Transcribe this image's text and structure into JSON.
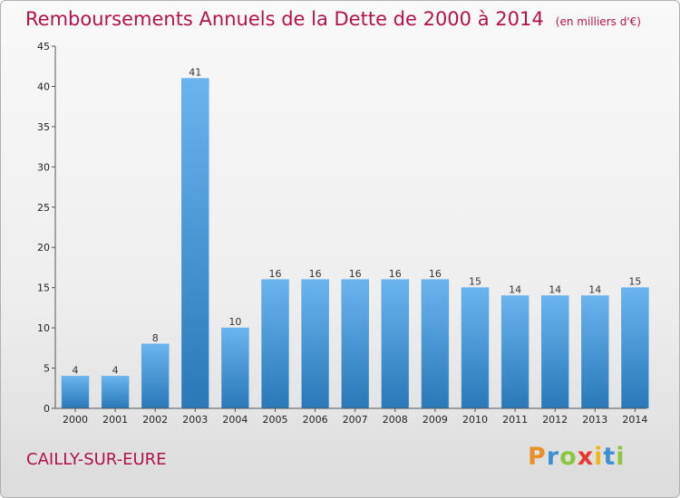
{
  "header": {
    "title": "Remboursements Annuels de la Dette de 2000 à 2014",
    "unit": "(en milliers d'€)"
  },
  "footer": {
    "commune": "CAILLY-SUR-EURE",
    "logo_letters": [
      "P",
      "r",
      "o",
      "x",
      "i",
      "t",
      "i"
    ],
    "logo_colors": [
      "#e8912c",
      "#3f8fd4",
      "#8cc63f",
      "#e53a2f",
      "#f2b61a",
      "#3f8fd4",
      "#8cc63f"
    ]
  },
  "colors": {
    "title": "#b0124d",
    "bar_light": "#6ab4ef",
    "bar_dark": "#2a78b8",
    "axis": "#555555",
    "grid_tick": "#555555"
  },
  "chart_data": {
    "type": "bar",
    "title": "Remboursements Annuels de la Dette de 2000 à 2014",
    "xlabel": "",
    "ylabel": "",
    "categories": [
      "2000",
      "2001",
      "2002",
      "2003",
      "2004",
      "2005",
      "2006",
      "2007",
      "2008",
      "2009",
      "2010",
      "2011",
      "2012",
      "2013",
      "2014"
    ],
    "values": [
      4,
      4,
      8,
      41,
      10,
      16,
      16,
      16,
      16,
      16,
      15,
      14,
      14,
      14,
      15
    ],
    "ylim": [
      0,
      45
    ],
    "yticks": [
      0,
      5,
      10,
      15,
      20,
      25,
      30,
      35,
      40,
      45
    ],
    "grid": false,
    "data_labels": true
  }
}
